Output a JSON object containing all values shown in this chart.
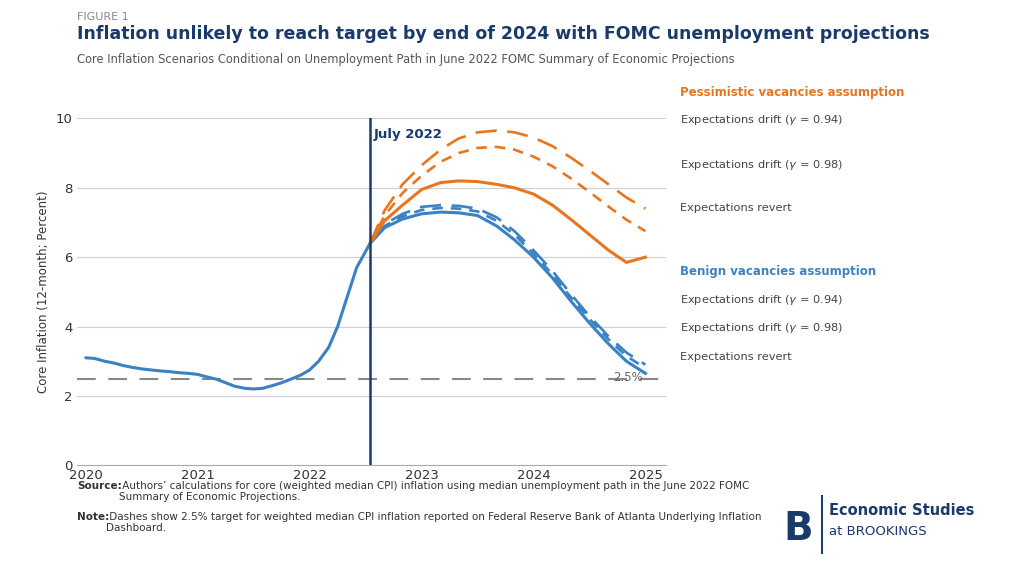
{
  "title_figure": "FIGURE 1",
  "title_main": "Inflation unlikely to reach target by end of 2024 with FOMC unemployment projections",
  "title_sub": "Core Inflation Scenarios Conditional on Unemployment Path in June 2022 FOMC Summary of Economic Projections",
  "ylabel": "Core Inflation (12-month; Percent)",
  "vertical_line_x": 2022.54,
  "vertical_line_label": "July 2022",
  "target_line_y": 2.5,
  "target_line_label": "2.5%",
  "ylim": [
    0,
    10
  ],
  "xlim": [
    2019.92,
    2025.18
  ],
  "yticks": [
    0,
    2,
    4,
    6,
    8,
    10
  ],
  "xticks": [
    2020,
    2021,
    2022,
    2023,
    2024,
    2025
  ],
  "bg_color": "#ffffff",
  "blue_color": "#3b82c4",
  "orange_color": "#e8761e",
  "dark_blue": "#1a3a6b",
  "source_bold": "Source:",
  "source_rest": " Authors’ calculations for core (weighted median CPI) inflation using median unemployment path in the June 2022 FOMC\nSummary of Economic Projections.",
  "note_bold": "Note:",
  "note_rest": " Dashes show 2.5% target for weighted median CPI inflation reported on Federal Reserve Bank of Atlanta Underlying Inflation\nDashboard.",
  "hist_x": [
    2020.0,
    2020.08,
    2020.17,
    2020.25,
    2020.33,
    2020.42,
    2020.5,
    2020.58,
    2020.67,
    2020.75,
    2020.83,
    2020.92,
    2021.0,
    2021.08,
    2021.17,
    2021.25,
    2021.33,
    2021.42,
    2021.5,
    2021.58,
    2021.67,
    2021.75,
    2021.83,
    2021.92,
    2022.0,
    2022.08,
    2022.17,
    2022.25,
    2022.33,
    2022.42,
    2022.54
  ],
  "hist_y": [
    3.1,
    3.08,
    3.0,
    2.95,
    2.88,
    2.82,
    2.78,
    2.75,
    2.72,
    2.7,
    2.67,
    2.65,
    2.62,
    2.55,
    2.48,
    2.38,
    2.28,
    2.22,
    2.2,
    2.22,
    2.3,
    2.38,
    2.48,
    2.6,
    2.75,
    3.0,
    3.4,
    4.0,
    4.8,
    5.7,
    6.4
  ],
  "proj_x": [
    2022.54,
    2022.67,
    2022.83,
    2023.0,
    2023.17,
    2023.33,
    2023.5,
    2023.67,
    2023.83,
    2024.0,
    2024.17,
    2024.33,
    2024.5,
    2024.67,
    2024.83,
    2025.0
  ],
  "blue_solid_y": [
    6.4,
    6.85,
    7.1,
    7.25,
    7.3,
    7.28,
    7.2,
    6.9,
    6.5,
    6.0,
    5.4,
    4.75,
    4.1,
    3.5,
    3.0,
    2.65
  ],
  "blue_dash94_y": [
    6.4,
    6.95,
    7.25,
    7.45,
    7.5,
    7.48,
    7.4,
    7.15,
    6.75,
    6.2,
    5.6,
    4.95,
    4.3,
    3.72,
    3.25,
    2.9
  ],
  "blue_dash98_y": [
    6.4,
    6.9,
    7.18,
    7.36,
    7.42,
    7.4,
    7.32,
    7.05,
    6.65,
    6.1,
    5.5,
    4.86,
    4.22,
    3.63,
    3.15,
    2.8
  ],
  "orange_solid_y": [
    6.4,
    7.05,
    7.5,
    7.95,
    8.15,
    8.2,
    8.18,
    8.1,
    8.0,
    7.82,
    7.5,
    7.1,
    6.65,
    6.2,
    5.85,
    6.0
  ],
  "orange_dash94_y": [
    6.4,
    7.35,
    8.1,
    8.65,
    9.1,
    9.42,
    9.6,
    9.65,
    9.6,
    9.45,
    9.2,
    8.88,
    8.5,
    8.1,
    7.72,
    7.4
  ],
  "orange_dash98_y": [
    6.4,
    7.2,
    7.85,
    8.35,
    8.75,
    9.0,
    9.15,
    9.18,
    9.1,
    8.9,
    8.62,
    8.28,
    7.88,
    7.46,
    7.08,
    6.75
  ]
}
